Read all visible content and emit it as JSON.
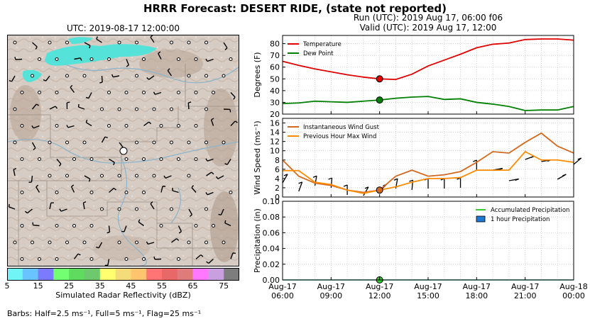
{
  "suptitle": "HRRR Forecast: DESERT RIDE, (state not reported)",
  "map_title": "UTC: 2019-08-17 12:00:00",
  "run_title": "Run (UTC): 2019 Aug 17, 06:00 f06",
  "valid_title": "Valid (UTC): 2019 Aug 17, 12:00",
  "colorbar": {
    "label": "Simulated Radar Reflectivity (dBZ)",
    "ticks": [
      "5",
      "15",
      "25",
      "35",
      "45",
      "55",
      "65",
      "75"
    ],
    "colors": [
      "#6ff5f5",
      "#69c3ff",
      "#7b7bff",
      "#72ff72",
      "#5fdc5f",
      "#6ec86e",
      "#ffff70",
      "#f5dc7b",
      "#ffc46e",
      "#ff7474",
      "#e86868",
      "#e07b7b",
      "#ff78ff",
      "#c8a0e0",
      "#7d7d7d"
    ]
  },
  "barbs_note": "Barbs: Half=2.5 ms⁻¹, Full=5 ms⁻¹, Flag=25 ms⁻¹",
  "chart_data": [
    {
      "type": "line",
      "ylabel": "Degrees (F)",
      "ylim": [
        20,
        87
      ],
      "yticks": [
        "20",
        "30",
        "40",
        "50",
        "60",
        "70",
        "80"
      ],
      "grid": true,
      "legend_position": "top-left",
      "series": [
        {
          "name": "Temperature",
          "color": "#e00000",
          "x": [
            6,
            7,
            8,
            9,
            10,
            11,
            12,
            13,
            14,
            15,
            16,
            17,
            18,
            19,
            20,
            21,
            22,
            23,
            24
          ],
          "values": [
            65,
            61.5,
            58.5,
            56,
            53.5,
            51.5,
            50,
            49.5,
            54,
            61,
            66,
            71,
            76.5,
            79.5,
            80.5,
            83.5,
            84,
            84,
            83
          ]
        },
        {
          "name": "Dew Point",
          "color": "#008000",
          "x": [
            6,
            7,
            8,
            9,
            10,
            11,
            12,
            13,
            14,
            15,
            16,
            17,
            18,
            19,
            20,
            21,
            22,
            23,
            24
          ],
          "values": [
            29,
            29.5,
            31,
            30.5,
            30,
            31,
            32,
            33.5,
            34.5,
            35,
            32.5,
            33,
            30,
            28.5,
            26.5,
            23,
            23.5,
            23.5,
            26.5
          ]
        }
      ],
      "markers": [
        {
          "series": "Temperature",
          "x": 12,
          "y": 50
        },
        {
          "series": "Dew Point",
          "x": 12,
          "y": 32
        }
      ]
    },
    {
      "type": "line",
      "ylabel": "Wind Speed (ms⁻¹)",
      "ylim": [
        0,
        17
      ],
      "yticks": [
        "0",
        "2",
        "4",
        "6",
        "8",
        "10",
        "12",
        "14",
        "16"
      ],
      "grid": true,
      "legend_position": "top-left",
      "series": [
        {
          "name": "Instantaneous Wind Gust",
          "color": "#d2691e",
          "x": [
            6,
            7,
            8,
            9,
            10,
            11,
            12,
            13,
            14,
            15,
            16,
            17,
            18,
            19,
            20,
            21,
            22,
            23,
            24
          ],
          "values": [
            8,
            4.5,
            3,
            2.5,
            1.5,
            1,
            1.5,
            4.5,
            5.8,
            4.5,
            4.8,
            5.5,
            7.5,
            9.8,
            9.5,
            11.8,
            13.8,
            11,
            9.5
          ]
        },
        {
          "name": "Previous Hour Max Wind",
          "color": "#ff8c00",
          "x": [
            6,
            7,
            8,
            9,
            10,
            11,
            12,
            13,
            14,
            15,
            16,
            17,
            18,
            19,
            20,
            21,
            22,
            23,
            24
          ],
          "values": [
            5.7,
            5.7,
            3.2,
            2.7,
            1.5,
            0.8,
            1.5,
            2.2,
            3.2,
            4,
            4,
            4.2,
            5.8,
            5.8,
            5.8,
            9.8,
            8,
            8,
            7.5
          ]
        }
      ],
      "markers": [
        {
          "series": "Instantaneous Wind Gust",
          "x": 12,
          "y": 1.5
        }
      ]
    },
    {
      "type": "bar",
      "ylabel": "Precipitation (in)",
      "ylim": [
        0,
        0.1
      ],
      "yticks": [
        "0.00",
        "0.02",
        "0.04",
        "0.06",
        "0.08",
        "0.10"
      ],
      "xticks": [
        {
          "x": 6,
          "line1": "Aug-17",
          "line2": "06:00"
        },
        {
          "x": 9,
          "line1": "Aug-17",
          "line2": "09:00"
        },
        {
          "x": 12,
          "line1": "Aug-17",
          "line2": "12:00"
        },
        {
          "x": 15,
          "line1": "Aug-17",
          "line2": "15:00"
        },
        {
          "x": 18,
          "line1": "Aug-17",
          "line2": "18:00"
        },
        {
          "x": 21,
          "line1": "Aug-17",
          "line2": "21:00"
        },
        {
          "x": 24,
          "line1": "Aug-18",
          "line2": "00:00"
        }
      ],
      "grid": true,
      "legend_position": "top-right",
      "series": [
        {
          "name": "Accumulated Precipitation",
          "color": "#32cd32",
          "x": [
            6,
            7,
            8,
            9,
            10,
            11,
            12,
            13,
            14,
            15,
            16,
            17,
            18,
            19,
            20,
            21,
            22,
            23,
            24
          ],
          "values": [
            0,
            0,
            0,
            0,
            0,
            0,
            0,
            0,
            0,
            0,
            0,
            0,
            0,
            0,
            0,
            0,
            0,
            0,
            0
          ]
        },
        {
          "name": "1 hour Precipitation",
          "color": "#1f77d4",
          "x": [
            6,
            7,
            8,
            9,
            10,
            11,
            12,
            13,
            14,
            15,
            16,
            17,
            18,
            19,
            20,
            21,
            22,
            23,
            24
          ],
          "values": [
            0,
            0,
            0,
            0,
            0,
            0,
            0,
            0,
            0,
            0,
            0,
            0,
            0,
            0,
            0,
            0,
            0,
            0,
            0
          ]
        }
      ],
      "markers": [
        {
          "series": "Accumulated Precipitation",
          "x": 12,
          "y": 0
        }
      ]
    }
  ]
}
